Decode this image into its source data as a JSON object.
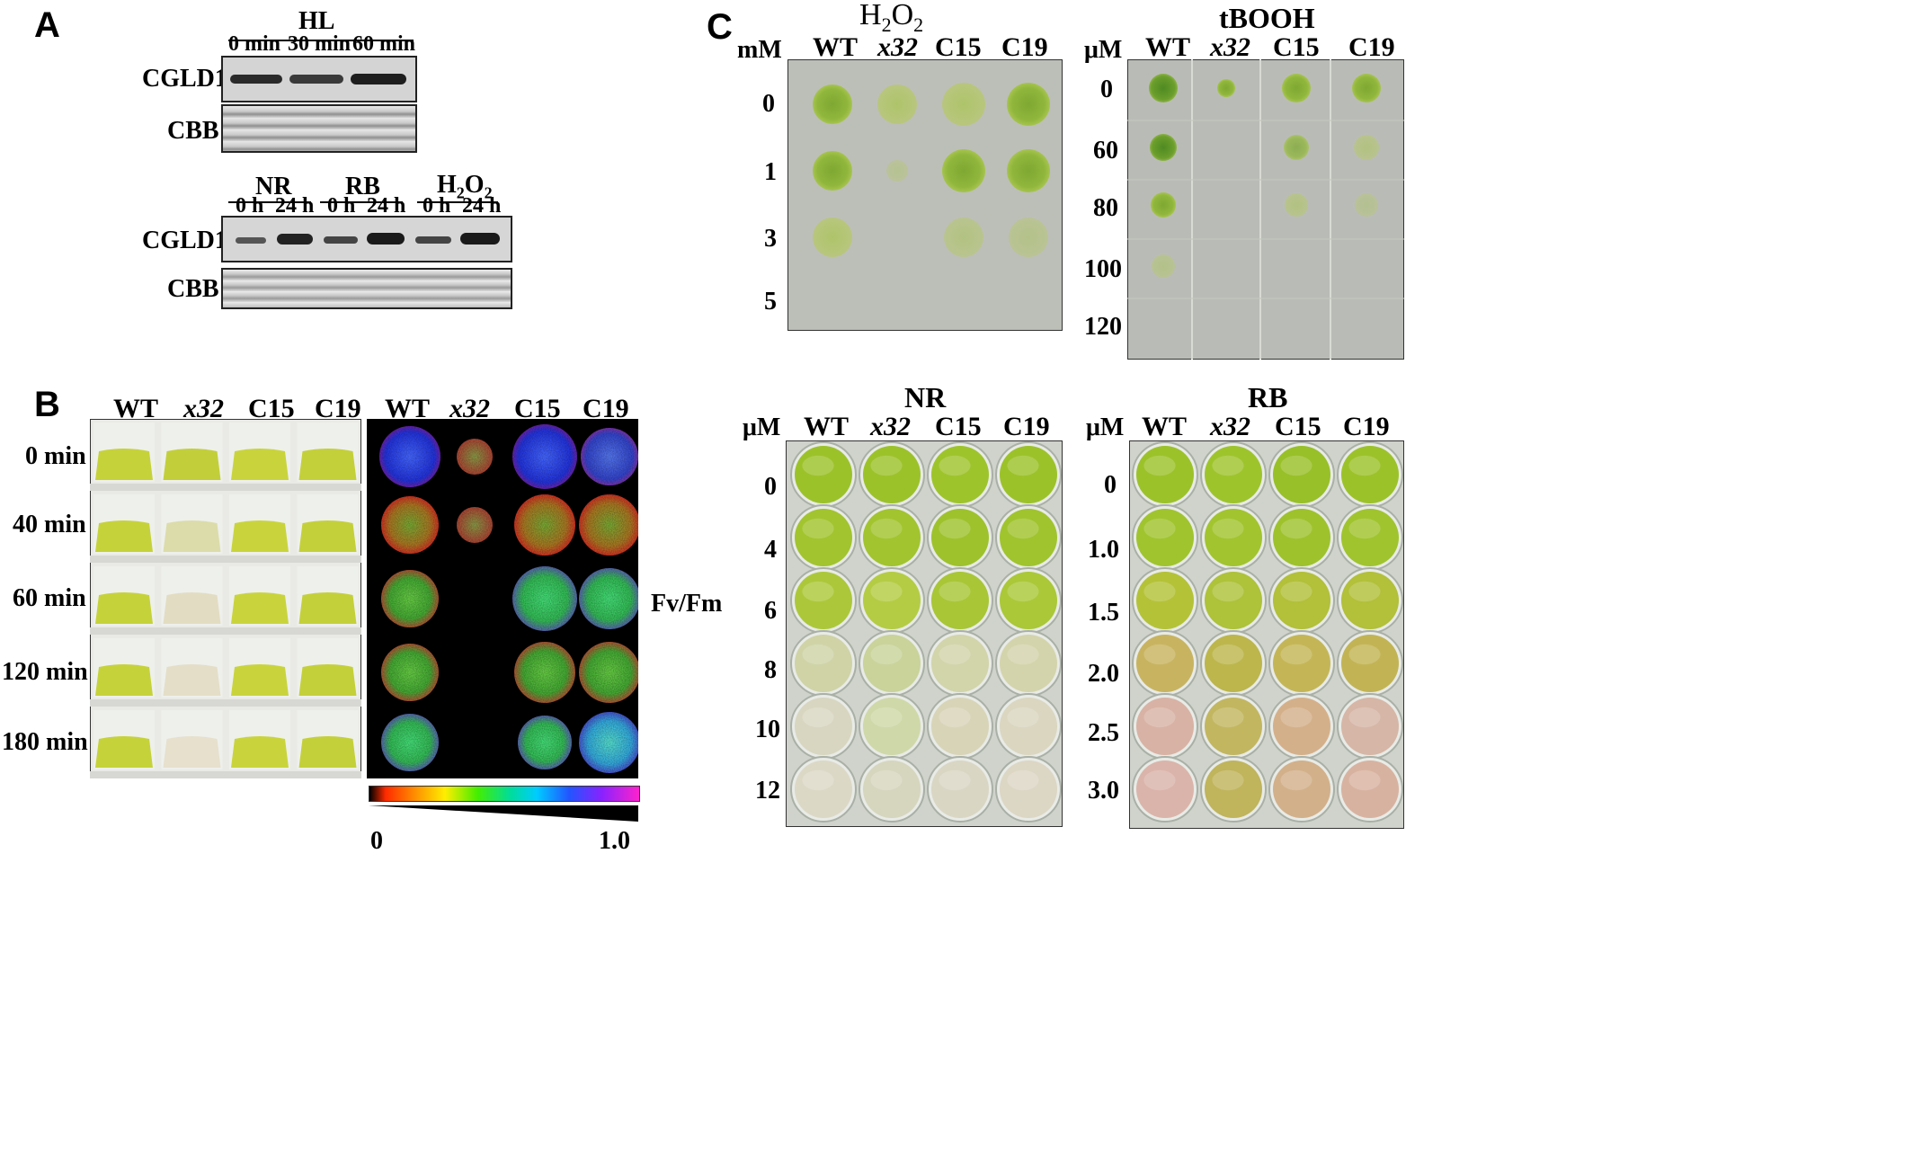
{
  "panels": {
    "A": {
      "letter": "A",
      "hl_header": "HL",
      "hl_times": [
        "0 min",
        "30 min",
        "60 min"
      ],
      "row_cgld1": "CGLD1",
      "row_cbb": "CBB",
      "treatments": [
        "NR",
        "RB",
        "H2O2"
      ],
      "h2o2_base": "H",
      "h2o2_sub1": "2",
      "h2o2_o": "O",
      "h2o2_sub2": "2",
      "treat_times": [
        "0 h",
        "24 h",
        "0 h",
        "24 h",
        "0 h",
        "24 h"
      ]
    },
    "B": {
      "letter": "B",
      "strains": [
        "WT",
        "x32",
        "C15",
        "C19"
      ],
      "times": [
        "0 min",
        "40 min",
        "60 min",
        "120 min",
        "180 min"
      ],
      "fvfm_label": "Fv/Fm",
      "scale_min": "0",
      "scale_max": "1.0"
    },
    "C": {
      "letter": "C",
      "strains": [
        "WT",
        "x32",
        "C15",
        "C19"
      ],
      "h2o2": {
        "title_base": "H",
        "title_sub1": "2",
        "title_o": "O",
        "title_sub2": "2",
        "unit": "mM",
        "concs": [
          "0",
          "1",
          "3",
          "5"
        ]
      },
      "tbooh": {
        "title": "tBOOH",
        "unit": "μM",
        "concs": [
          "0",
          "60",
          "80",
          "100",
          "120"
        ]
      },
      "nr": {
        "title": "NR",
        "unit": "μM",
        "concs": [
          "0",
          "4",
          "6",
          "8",
          "10",
          "12"
        ]
      },
      "rb": {
        "title": "RB",
        "unit": "μM",
        "concs": [
          "0",
          "1.0",
          "1.5",
          "2.0",
          "2.5",
          "3.0"
        ]
      }
    }
  },
  "colors": {
    "plate_bg": "#bfc2bc",
    "spot_green": "#8fb43a",
    "culture_yellow": "#c8d23a",
    "well_green": "#a8c43a",
    "fvfm_bg": "#000000"
  }
}
